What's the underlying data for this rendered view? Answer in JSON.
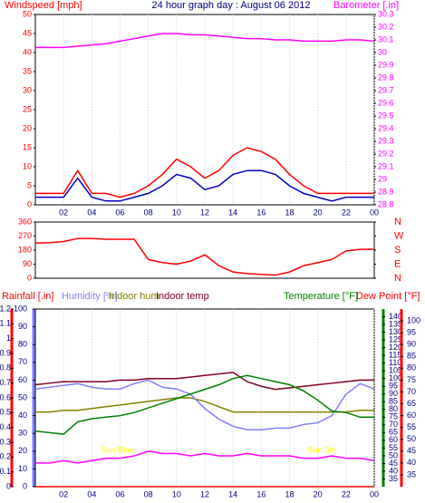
{
  "chart_data": [
    {
      "type": "line",
      "title": "24 hour graph day : August 06 2012",
      "y_label": "Windspeed [mph]",
      "y2_label": "Barometer [.in]",
      "x": [
        0,
        1,
        2,
        3,
        4,
        5,
        6,
        7,
        8,
        9,
        10,
        11,
        12,
        13,
        14,
        15,
        16,
        17,
        18,
        19,
        20,
        21,
        22,
        23,
        24
      ],
      "xlim": [
        0,
        24
      ],
      "xticks": [
        {
          "value": 2,
          "label": "02"
        },
        {
          "value": 4,
          "label": "04"
        },
        {
          "value": 6,
          "label": "06"
        },
        {
          "value": 8,
          "label": "08"
        },
        10,
        12,
        14,
        16,
        18,
        20,
        22,
        {
          "value": 24,
          "label": "00"
        }
      ],
      "ylim": [
        0,
        50
      ],
      "yticks": [
        0,
        5,
        10,
        15,
        20,
        25,
        30,
        35,
        40,
        45,
        50
      ],
      "y2lim": [
        28.8,
        30.3
      ],
      "y2ticks": [
        28.8,
        28.9,
        29,
        29.1,
        29.2,
        29.3,
        29.4,
        29.5,
        29.6,
        29.7,
        29.8,
        29.9,
        30,
        30.1,
        30.2,
        30.3
      ],
      "series": [
        {
          "color": "#ff0000",
          "values": [
            3,
            3,
            3,
            9,
            3,
            3,
            2,
            3,
            5,
            8,
            12,
            10,
            7,
            9,
            13,
            15,
            14,
            12,
            8,
            5,
            3,
            3,
            3,
            3,
            3
          ]
        },
        {
          "color": "#0000c0",
          "values": [
            2,
            2,
            2,
            7,
            2,
            1,
            1,
            2,
            3,
            5,
            8,
            7,
            4,
            5,
            8,
            9,
            9,
            8,
            5,
            3,
            2,
            1,
            2,
            2,
            2
          ]
        },
        {
          "color": "#ff00ff",
          "axis": "y2",
          "values": [
            30.04,
            30.04,
            30.04,
            30.05,
            30.06,
            30.07,
            30.09,
            30.11,
            30.13,
            30.15,
            30.15,
            30.14,
            30.14,
            30.13,
            30.12,
            30.11,
            30.11,
            30.1,
            30.1,
            30.09,
            30.09,
            30.09,
            30.1,
            30.1,
            30.09
          ]
        }
      ]
    },
    {
      "type": "line",
      "x": [
        0,
        1,
        2,
        3,
        4,
        5,
        6,
        7,
        8,
        9,
        10,
        11,
        12,
        13,
        14,
        15,
        16,
        17,
        18,
        19,
        20,
        21,
        22,
        23,
        24
      ],
      "xlim": [
        0,
        24
      ],
      "ylim": [
        0,
        360
      ],
      "yticks": [
        0,
        90,
        180,
        270,
        360
      ],
      "y2lim": [
        0,
        360
      ],
      "y2ticks": [
        {
          "value": 0,
          "label": "N"
        },
        {
          "value": 90,
          "label": "E"
        },
        {
          "value": 180,
          "label": "S"
        },
        {
          "value": 270,
          "label": "W"
        },
        {
          "value": 360,
          "label": "N"
        }
      ],
      "series": [
        {
          "color": "#ff0000",
          "values": [
            225,
            228,
            235,
            255,
            255,
            250,
            250,
            250,
            120,
            100,
            90,
            110,
            150,
            80,
            40,
            30,
            25,
            20,
            40,
            80,
            100,
            120,
            175,
            185,
            185
          ]
        }
      ]
    },
    {
      "type": "line",
      "x": [
        0,
        1,
        2,
        3,
        4,
        5,
        6,
        7,
        8,
        9,
        10,
        11,
        12,
        13,
        14,
        15,
        16,
        17,
        18,
        19,
        20,
        21,
        22,
        23,
        24
      ],
      "xlim": [
        0,
        24
      ],
      "xticks": [
        {
          "value": 2,
          "label": "02"
        },
        {
          "value": 4,
          "label": "04"
        },
        {
          "value": 6,
          "label": "06"
        },
        {
          "value": 8,
          "label": "08"
        },
        10,
        12,
        14,
        16,
        18,
        20,
        22,
        {
          "value": 24,
          "label": "00"
        }
      ],
      "axes": {
        "rain": {
          "label": "Rainfall [.in]",
          "color": "#ff0000",
          "lim": [
            0,
            1.2
          ],
          "ticks": [
            0,
            0.1,
            0.2,
            0.3,
            0.4,
            0.5,
            0.6,
            0.7,
            0.8,
            0.9,
            1,
            1.1,
            1.2
          ]
        },
        "hum": {
          "label": "Humidity [%]",
          "color": "#8080ff",
          "lim": [
            0,
            100
          ],
          "ticks": [
            0,
            10,
            20,
            30,
            40,
            50,
            60,
            70,
            80,
            90,
            100
          ]
        },
        "temp": {
          "label": "Temperature [°F]",
          "color": "#008000",
          "lim": [
            30,
            145
          ],
          "ticks": [
            35,
            40,
            45,
            50,
            55,
            60,
            65,
            70,
            75,
            80,
            85,
            90,
            95,
            100,
            105,
            110,
            115,
            120,
            125,
            130,
            135,
            140
          ]
        },
        "dew": {
          "label": "Dew Point [°F]",
          "color": "#ff0000",
          "lim": [
            30,
            105
          ],
          "ticks": [
            35,
            40,
            45,
            50,
            55,
            60,
            65,
            70,
            75,
            80,
            85,
            90,
            95,
            100
          ]
        }
      },
      "series": [
        {
          "name": "Indoor hum",
          "color": "#808000",
          "axis": "hum",
          "values": [
            42,
            42,
            43,
            43,
            44,
            45,
            46,
            47,
            48,
            49,
            50,
            50,
            48,
            45,
            42,
            42,
            42,
            42,
            42,
            42,
            42,
            42,
            42,
            43,
            43
          ]
        },
        {
          "name": "Indoor temp",
          "color": "#800020",
          "axis": "temp",
          "values": [
            96,
            97,
            98,
            98,
            98,
            98,
            99,
            99,
            100,
            100,
            100,
            101,
            102,
            103,
            104,
            98,
            95,
            93,
            94,
            95,
            96,
            97,
            98,
            99,
            99
          ]
        },
        {
          "color": "#8080ff",
          "axis": "hum",
          "values": [
            55,
            56,
            57,
            58,
            56,
            55,
            55,
            58,
            60,
            56,
            55,
            52,
            44,
            38,
            34,
            32,
            32,
            33,
            33,
            35,
            36,
            40,
            52,
            58,
            55
          ]
        },
        {
          "color": "#008000",
          "axis": "temp",
          "values": [
            66,
            65,
            64,
            72,
            74,
            75,
            76,
            78,
            81,
            84,
            87,
            90,
            93,
            96,
            100,
            102,
            100,
            98,
            96,
            92,
            86,
            79,
            78,
            75,
            75
          ]
        },
        {
          "color": "#ff00ff",
          "axis": "dew",
          "values": [
            40,
            40,
            41,
            40,
            41,
            42,
            42,
            43,
            45,
            44,
            44,
            43,
            44,
            43,
            43,
            44,
            43,
            43,
            43,
            42,
            42,
            43,
            42,
            42,
            41
          ]
        },
        {
          "color": "#ff0000",
          "axis": "rain",
          "values": [
            0,
            0,
            0,
            0,
            0,
            0,
            0,
            0,
            0,
            0,
            0,
            0,
            0,
            0,
            0,
            0,
            0,
            0,
            0,
            0,
            0,
            0,
            0,
            0,
            0
          ]
        }
      ],
      "annotations": [
        {
          "text": "Sun Rise",
          "x": 5.8
        },
        {
          "text": "Sun Set",
          "x": 20.3
        }
      ]
    }
  ]
}
